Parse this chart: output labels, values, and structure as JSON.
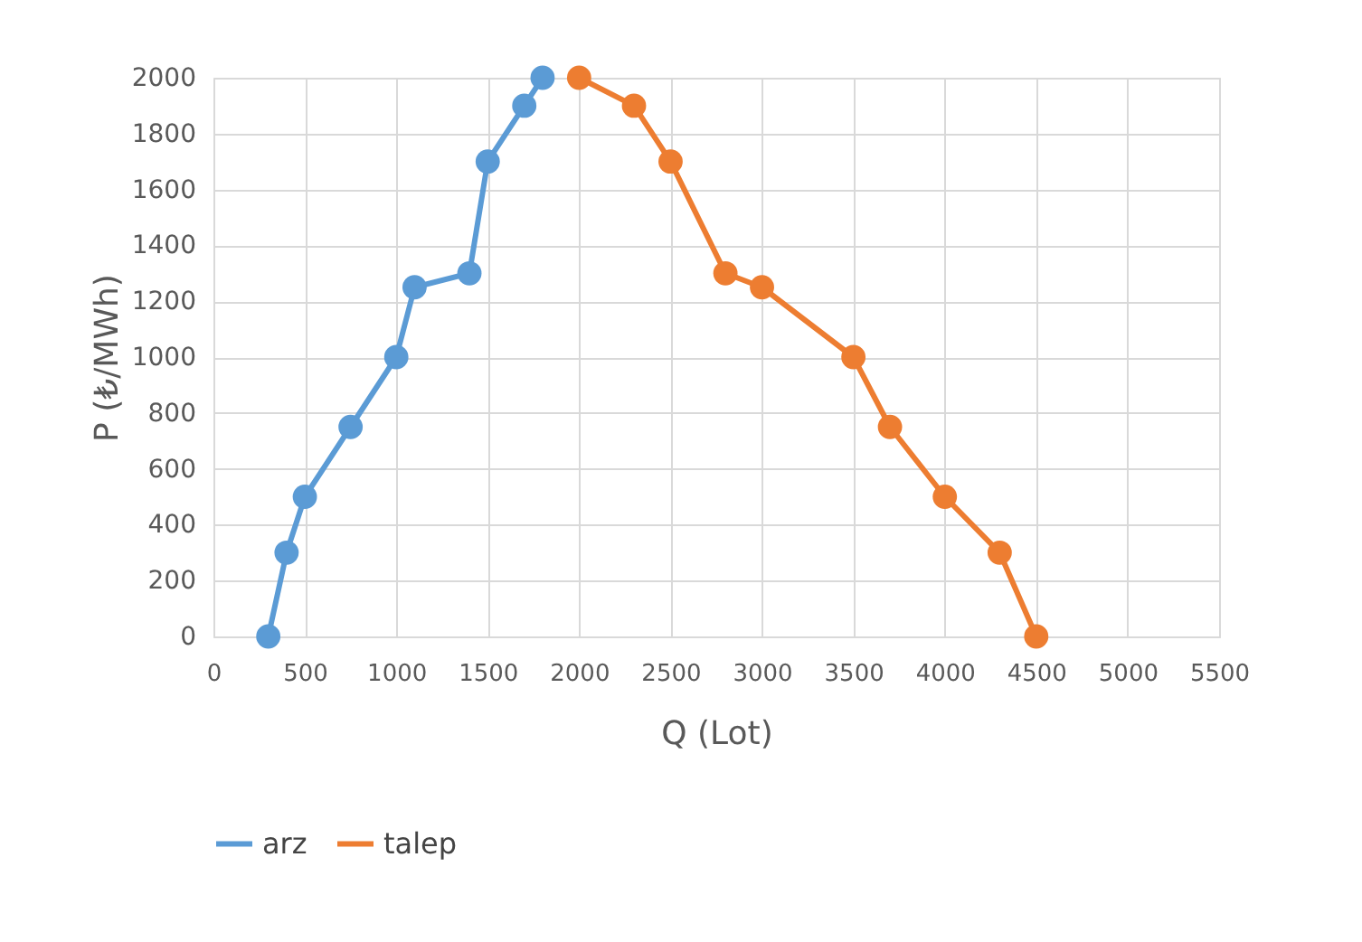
{
  "chart_data": {
    "type": "line",
    "xlabel": "Q (Lot)",
    "ylabel": "P (₺/MWh)",
    "xlim": [
      0,
      5500
    ],
    "xticks": [
      0,
      500,
      1000,
      1500,
      2000,
      2500,
      3000,
      3500,
      4000,
      4500,
      5000,
      5500
    ],
    "ylim": [
      0,
      2000
    ],
    "yticks": [
      0,
      200,
      400,
      600,
      800,
      1000,
      1200,
      1400,
      1600,
      1800,
      2000
    ],
    "grid": true,
    "legend": "bottom",
    "marker": "circle",
    "line_style": "solid",
    "series": [
      {
        "name": "arz",
        "color": "#5b9bd5",
        "x": [
          300,
          400,
          500,
          750,
          1000,
          1100,
          1400,
          1500,
          1700,
          1800
        ],
        "values": [
          0,
          300,
          500,
          750,
          1000,
          1250,
          1300,
          1700,
          1900,
          2000
        ]
      },
      {
        "name": "talep",
        "color": "#ed7d31",
        "x": [
          2000,
          2300,
          2500,
          2800,
          3000,
          3500,
          3700,
          4000,
          4300,
          4500
        ],
        "values": [
          2000,
          1900,
          1700,
          1300,
          1250,
          1000,
          750,
          500,
          300,
          0
        ]
      }
    ]
  }
}
